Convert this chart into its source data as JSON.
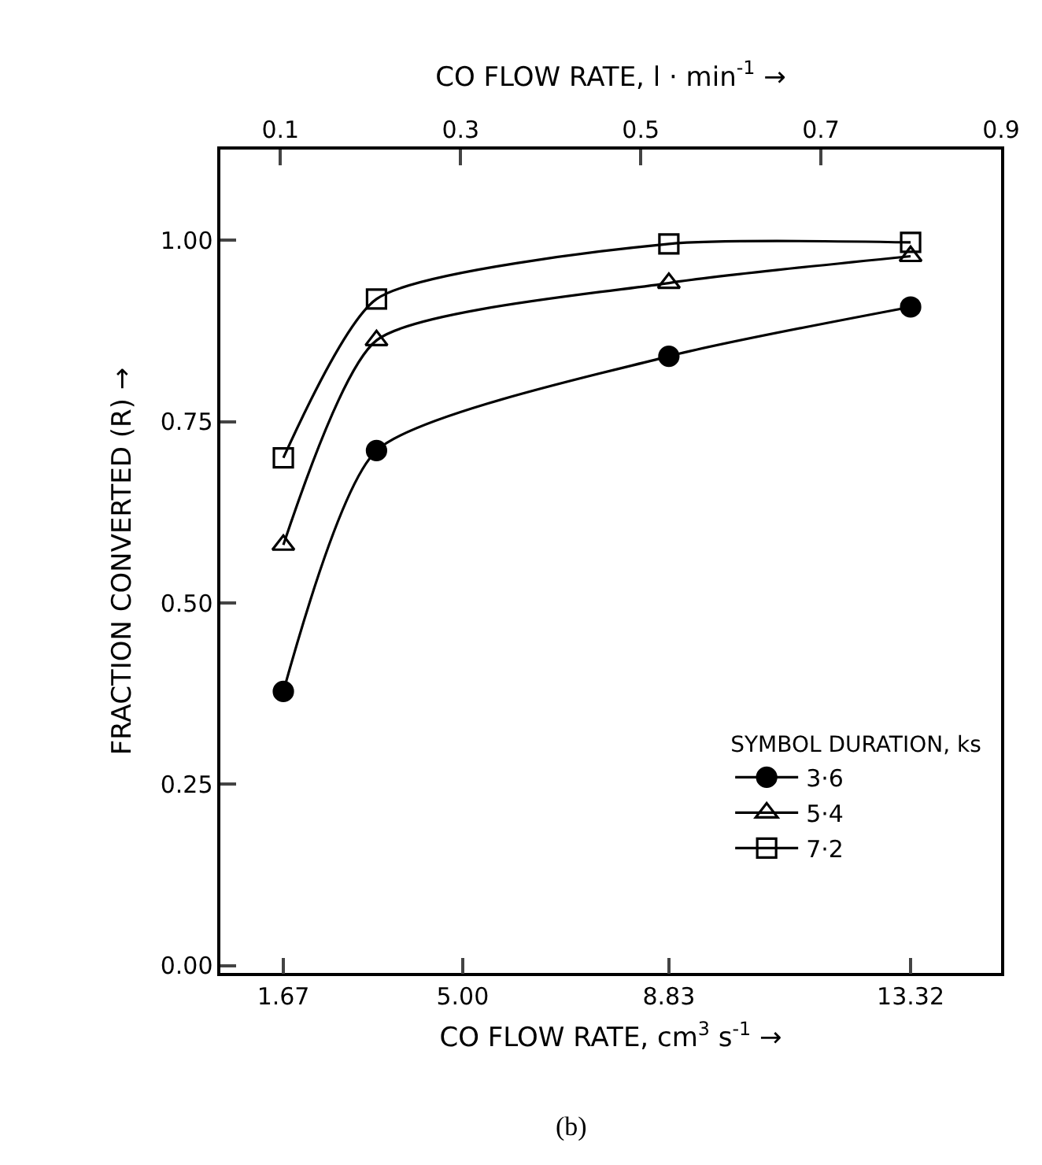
{
  "chart_data": {
    "type": "line",
    "xlabel": "CO FLOW RATE, cm$^{3}$ s$^{-1}$ →",
    "x2label": "CO FLOW RATE, l · min$^{-1}$ →",
    "ylabel": "FRACTION CONVERTED (R) →",
    "legend_title": "SYMBOL DURATION, ks",
    "annotations": [
      "(b)"
    ],
    "x": [
      1.67,
      3.4,
      8.83,
      13.32
    ],
    "series": [
      {
        "name": "3·6",
        "color": "#000000",
        "marker": "circle",
        "values": [
          0.378,
          0.71,
          0.84,
          0.908
        ]
      },
      {
        "name": "5·4",
        "color": "#000000",
        "marker": "triangle",
        "values": [
          0.58,
          0.862,
          0.941,
          0.978
        ]
      },
      {
        "name": "7·2",
        "color": "#000000",
        "marker": "square",
        "values": [
          0.7,
          0.919,
          0.995,
          0.997
        ]
      }
    ],
    "xlim": [
      0.5,
      15.0
    ],
    "xticks": [
      {
        "value": 1.67,
        "label": "1.67"
      },
      {
        "value": 5.0,
        "label": "5.00"
      },
      {
        "value": 8.83,
        "label": "8.83"
      },
      {
        "value": 13.32,
        "label": "13.32"
      }
    ],
    "x2lim": [
      0.0333,
      0.9
    ],
    "x2ticks": [
      0.1,
      0.3,
      0.5,
      0.7,
      0.9
    ],
    "ylim": [
      -0.01,
      1.125
    ],
    "yticks": [
      {
        "value": 0,
        "label": "0.00"
      },
      {
        "value": 0.25,
        "label": "0.25"
      },
      {
        "value": 0.5,
        "label": "0.50"
      },
      {
        "value": 0.75,
        "label": "0.75"
      },
      {
        "value": 1.0,
        "label": "1.00"
      }
    ],
    "grid": false,
    "legend": "bottom right",
    "line_style": "solid"
  }
}
